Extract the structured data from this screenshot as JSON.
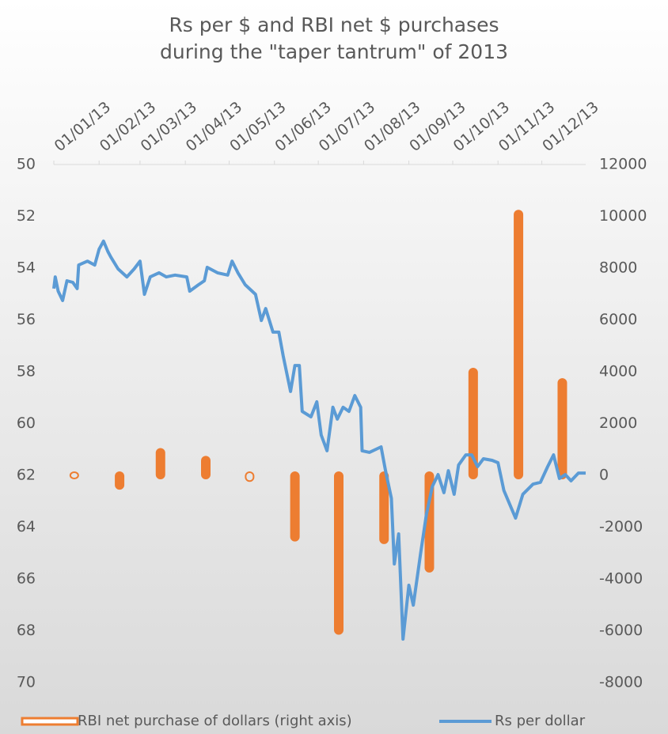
{
  "chart_data": {
    "type": "combo",
    "title": [
      "Rs per $ and RBI net $ purchases",
      "during the \"taper tantrum\" of 2013"
    ],
    "xlim": [
      "01/01/13",
      "31/12/13"
    ],
    "xticks": [
      "01/01/13",
      "01/02/13",
      "01/03/13",
      "01/04/13",
      "01/05/13",
      "01/06/13",
      "01/07/13",
      "01/08/13",
      "01/09/13",
      "01/10/13",
      "01/11/13",
      "01/12/13"
    ],
    "ylim": [
      50,
      70
    ],
    "y_reversed": true,
    "yticks": [
      50,
      52,
      54,
      56,
      58,
      60,
      62,
      64,
      66,
      68,
      70
    ],
    "y2lim": [
      -8000,
      12000
    ],
    "y2ticks": [
      12000,
      10000,
      8000,
      6000,
      4000,
      2000,
      0,
      -2000,
      -4000,
      -6000,
      -8000
    ],
    "legend": "bottom",
    "series": [
      {
        "name": "RBI net purchase of dollars (right axis)",
        "type": "bar",
        "axis": "y2",
        "color": "#ed7d31",
        "x": [
          "15/01/13",
          "15/02/13",
          "15/03/13",
          "15/04/13",
          "15/05/13",
          "15/06/13",
          "15/07/13",
          "15/08/13",
          "15/09/13",
          "15/10/13",
          "15/11/13",
          "15/12/13"
        ],
        "values": [
          0,
          -400,
          900,
          600,
          -100,
          -2400,
          -6000,
          -2500,
          -3600,
          4000,
          10100,
          3600
        ]
      },
      {
        "name": "Rs per dollar",
        "type": "line",
        "axis": "y",
        "color": "#5b9bd5",
        "x": [
          "01/01/13",
          "02/01/13",
          "04/01/13",
          "07/01/13",
          "10/01/13",
          "14/01/13",
          "17/01/13",
          "18/01/13",
          "24/01/13",
          "29/01/13",
          "01/02/13",
          "04/02/13",
          "07/02/13",
          "09/02/13",
          "14/02/13",
          "20/02/13",
          "25/02/13",
          "01/03/13",
          "04/03/13",
          "08/03/13",
          "14/03/13",
          "19/03/13",
          "25/03/13",
          "02/04/13",
          "04/04/13",
          "10/04/13",
          "14/04/13",
          "16/04/13",
          "23/04/13",
          "30/04/13",
          "03/05/13",
          "07/05/13",
          "12/05/13",
          "19/05/13",
          "23/05/13",
          "26/05/13",
          "31/05/13",
          "04/06/13",
          "07/06/13",
          "12/06/13",
          "15/06/13",
          "18/06/13",
          "20/06/13",
          "26/06/13",
          "30/06/13",
          "03/07/13",
          "07/07/13",
          "11/07/13",
          "14/07/13",
          "18/07/13",
          "22/07/13",
          "26/07/13",
          "30/07/13",
          "31/07/13",
          "05/08/13",
          "13/08/13",
          "16/08/13",
          "20/08/13",
          "22/08/13",
          "25/08/13",
          "28/08/13",
          "01/09/13",
          "04/09/13",
          "09/09/13",
          "13/09/13",
          "17/09/13",
          "21/09/13",
          "25/09/13",
          "28/09/13",
          "02/10/13",
          "05/10/13",
          "10/10/13",
          "14/10/13",
          "18/10/13",
          "22/10/13",
          "28/10/13",
          "01/11/13",
          "05/11/13",
          "13/11/13",
          "18/11/13",
          "25/11/13",
          "30/11/13",
          "05/12/13",
          "09/12/13",
          "13/12/13",
          "17/12/13",
          "21/12/13",
          "26/12/13",
          "31/12/13"
        ],
        "values": [
          54.79,
          54.34,
          54.89,
          55.25,
          54.49,
          54.55,
          54.79,
          53.88,
          53.73,
          53.88,
          53.27,
          52.96,
          53.36,
          53.57,
          54.03,
          54.34,
          54.03,
          53.73,
          55.01,
          54.34,
          54.18,
          54.34,
          54.27,
          54.34,
          54.89,
          54.64,
          54.49,
          53.97,
          54.18,
          54.27,
          53.73,
          54.18,
          54.64,
          55.01,
          56.02,
          55.56,
          56.47,
          56.47,
          57.39,
          58.76,
          57.76,
          57.76,
          59.53,
          59.74,
          59.16,
          60.44,
          61.05,
          59.37,
          59.83,
          59.37,
          59.53,
          58.92,
          59.37,
          61.05,
          61.11,
          60.9,
          61.82,
          62.89,
          65.42,
          64.26,
          68.32,
          66.24,
          67.01,
          65.02,
          63.5,
          62.43,
          61.97,
          62.67,
          61.82,
          62.73,
          61.6,
          61.21,
          61.21,
          61.66,
          61.36,
          61.42,
          61.51,
          62.58,
          63.65,
          62.73,
          62.34,
          62.27,
          61.66,
          61.21,
          62.12,
          61.97,
          62.21,
          61.91,
          61.91
        ]
      }
    ]
  }
}
